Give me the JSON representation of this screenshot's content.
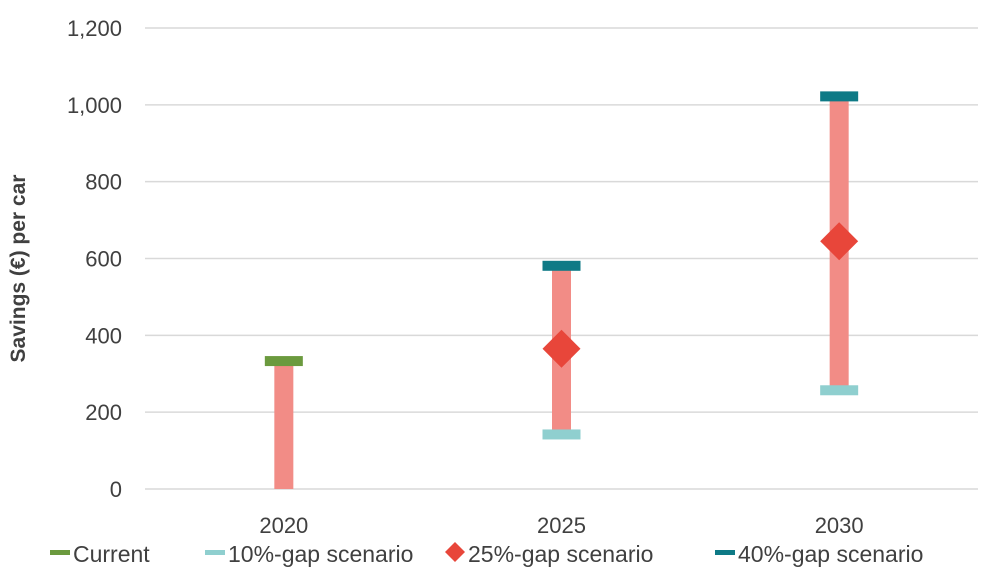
{
  "chart_data": {
    "type": "range",
    "categories": [
      "2020",
      "2025",
      "2030"
    ],
    "ylabel": "Savings (€) per car",
    "ylim": [
      0,
      1200
    ],
    "yticks": [
      0,
      200,
      400,
      600,
      800,
      1000,
      1200
    ],
    "ytick_labels": [
      "0",
      "200",
      "400",
      "600",
      "800",
      "1,000",
      "1,200"
    ],
    "grid": true,
    "legend_position": "bottom",
    "range_bars": [
      {
        "category": "2020",
        "low": 0,
        "high": 330
      },
      {
        "category": "2025",
        "low": 145,
        "high": 580
      },
      {
        "category": "2030",
        "low": 255,
        "high": 1020
      }
    ],
    "series": [
      {
        "name": "Current",
        "marker": "dash",
        "color": "#6b9a3e",
        "points": [
          {
            "category": "2020",
            "value": 333
          }
        ]
      },
      {
        "name": "10%-gap scenario",
        "marker": "dash",
        "color": "#8fcfcf",
        "points": [
          {
            "category": "2025",
            "value": 142
          },
          {
            "category": "2030",
            "value": 257
          }
        ]
      },
      {
        "name": "25%-gap scenario",
        "marker": "diamond",
        "color": "#e8463a",
        "points": [
          {
            "category": "2025",
            "value": 365
          },
          {
            "category": "2030",
            "value": 645
          }
        ]
      },
      {
        "name": "40%-gap scenario",
        "marker": "dash",
        "color": "#0e7a86",
        "points": [
          {
            "category": "2025",
            "value": 581
          },
          {
            "category": "2030",
            "value": 1022
          }
        ]
      }
    ],
    "colors": {
      "range_bar": "#f28c86",
      "grid": "#d9d9d9",
      "text": "#404040"
    }
  }
}
